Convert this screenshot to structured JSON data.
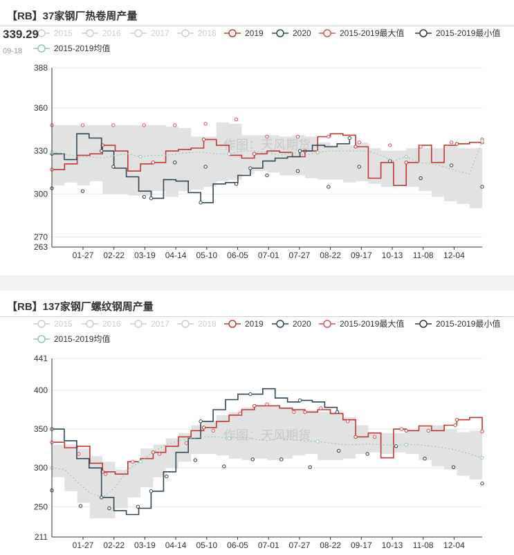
{
  "charts": [
    {
      "title": "【RB】37家钢厂热卷周产量",
      "tooltip": {
        "value": "339.29",
        "date": "09-18"
      },
      "watermark": "作图：天风期货",
      "chart_data": {
        "type": "line",
        "y_ticks": [
          263,
          270,
          300,
          330,
          360,
          388
        ],
        "ylim": [
          263,
          388
        ],
        "x_ticks": [
          "01-27",
          "02-22",
          "03-19",
          "04-14",
          "05-10",
          "06-05",
          "07-01",
          "07-27",
          "08-22",
          "09-17",
          "10-13",
          "11-08",
          "12-04"
        ],
        "legend": [
          {
            "name": "2015",
            "color": "#cccccc",
            "active": false
          },
          {
            "name": "2016",
            "color": "#cccccc",
            "active": false
          },
          {
            "name": "2017",
            "color": "#cccccc",
            "active": false
          },
          {
            "name": "2018",
            "color": "#cccccc",
            "active": false
          },
          {
            "name": "2019",
            "color": "#c23531",
            "active": true
          },
          {
            "name": "2020",
            "color": "#2f4554",
            "active": true
          },
          {
            "name": "2015-2019最大值",
            "color": "#d94e5d",
            "active": true
          },
          {
            "name": "2015-2019最小值",
            "color": "#333333",
            "active": true
          },
          {
            "name": "2015-2019均值",
            "color": "#91c7ae",
            "active": true
          }
        ],
        "band_max": [
          348,
          348,
          348,
          348,
          348,
          348,
          348,
          348,
          348,
          347,
          346,
          340,
          340,
          350,
          349,
          341,
          341,
          341,
          340,
          341,
          340,
          336,
          334,
          334,
          336,
          332,
          330,
          330,
          332,
          332,
          332,
          333,
          332,
          332,
          338
        ],
        "band_min": [
          305,
          306,
          308,
          306,
          309,
          300,
          300,
          299,
          299,
          302,
          298,
          302,
          303,
          305,
          309,
          310,
          314,
          316,
          315,
          313,
          313,
          311,
          310,
          310,
          308,
          309,
          307,
          305,
          306,
          305,
          302,
          298,
          295,
          293,
          290
        ],
        "series": [
          {
            "name": "2019",
            "color": "#c23531",
            "values": [
              317,
              321,
              327,
              328,
              334,
              330,
              316,
              321,
              322,
              330,
              331,
              332,
              338,
              334,
              327,
              325,
              328,
              330,
              329,
              326,
              330,
              340,
              342,
              341,
              333,
              311,
              322,
              306,
              322,
              334,
              322,
              334,
              335,
              336,
              336
            ]
          },
          {
            "name": "2020",
            "color": "#2f4554",
            "values": [
              328,
              324,
              342,
              339,
              330,
              318,
              312,
              302,
              297,
              310,
              309,
              301,
              294,
              307,
              308,
              313,
              318,
              323,
              325,
              326,
              330,
              334,
              333,
              335,
              339
            ]
          },
          {
            "name": "2015-2019最大值",
            "color": "#d94e5d",
            "values": [
              348,
              348,
              348,
              348,
              348,
              349,
              352,
              340,
              340,
              340,
              336,
              334,
              333,
              336,
              338
            ]
          },
          {
            "name": "2015-2019最小值",
            "color": "#333333",
            "values": [
              304,
              302,
              319,
              298,
              322,
              319,
              307,
              313,
              316,
              305,
              319,
              323,
              311,
              320,
              305
            ]
          },
          {
            "name": "2015-2019均值",
            "color": "#91c7ae",
            "values": [
              329,
              328,
              326,
              326,
              325,
              327,
              328,
              326,
              327,
              327,
              328,
              329,
              329,
              328,
              328,
              330,
              330,
              329,
              327,
              329,
              327,
              329,
              330,
              330,
              330,
              330,
              327,
              323,
              326,
              322,
              321,
              319,
              316,
              314,
              337
            ]
          }
        ]
      }
    },
    {
      "title": "【RB】137家钢厂螺纹钢周产量",
      "watermark": "作图：天风期货",
      "chart_data": {
        "type": "line",
        "y_ticks": [
          211,
          250,
          300,
          350,
          400,
          441
        ],
        "ylim": [
          211,
          441
        ],
        "x_ticks": [
          "01-27",
          "02-22",
          "03-19",
          "04-14",
          "05-10",
          "06-05",
          "07-01",
          "07-27",
          "08-22",
          "09-17",
          "10-13",
          "11-08",
          "12-04"
        ],
        "legend": [
          {
            "name": "2015",
            "color": "#cccccc",
            "active": false
          },
          {
            "name": "2016",
            "color": "#cccccc",
            "active": false
          },
          {
            "name": "2017",
            "color": "#cccccc",
            "active": false
          },
          {
            "name": "2018",
            "color": "#cccccc",
            "active": false
          },
          {
            "name": "2019",
            "color": "#c23531",
            "active": true
          },
          {
            "name": "2020",
            "color": "#2f4554",
            "active": true
          },
          {
            "name": "2015-2019最大值",
            "color": "#d94e5d",
            "active": true
          },
          {
            "name": "2015-2019最小值",
            "color": "#333333",
            "active": true
          },
          {
            "name": "2015-2019均值",
            "color": "#91c7ae",
            "active": true
          }
        ],
        "band_max": [
          330,
          330,
          325,
          315,
          308,
          298,
          308,
          325,
          330,
          338,
          345,
          355,
          360,
          368,
          372,
          378,
          380,
          380,
          378,
          376,
          374,
          372,
          372,
          365,
          355,
          345,
          345,
          345,
          348,
          352,
          355,
          350,
          346,
          348,
          345
        ],
        "band_min": [
          292,
          288,
          270,
          255,
          235,
          235,
          248,
          262,
          275,
          288,
          300,
          308,
          318,
          318,
          316,
          312,
          310,
          312,
          310,
          312,
          316,
          318,
          310,
          310,
          312,
          318,
          320,
          318,
          320,
          318,
          310,
          302,
          298,
          290,
          285
        ],
        "series": [
          {
            "name": "2019",
            "color": "#c23531",
            "values": [
              333,
              326,
              328,
              306,
              295,
              292,
              308,
              312,
              320,
              328,
              340,
              348,
              352,
              360,
              368,
              375,
              380,
              380,
              377,
              375,
              372,
              375,
              370,
              362,
              340,
              345,
              313,
              350,
              348,
              354,
              348,
              355,
              362,
              365,
              347
            ]
          },
          {
            "name": "2020",
            "color": "#2f4554",
            "values": [
              350,
              335,
              312,
              300,
              262,
              245,
              240,
              248,
              270,
              295,
              320,
              338,
              360,
              375,
              388,
              395,
              395,
              402,
              390,
              385,
              387,
              385,
              378,
              372
            ]
          },
          {
            "name": "2015-2019最大值",
            "color": "#d94e5d",
            "values": [
              333,
              318,
              292,
              308,
              318,
              332,
              348,
              370,
              382,
              372,
              377,
              360,
              340,
              350,
              348,
              355,
              347
            ]
          },
          {
            "name": "2015-2019最小值",
            "color": "#333333",
            "values": [
              271,
              251,
              248,
              250,
              289,
              310,
              302,
              311,
              311,
              301,
              322,
              318,
              328,
              312,
              301,
              280
            ]
          },
          {
            "name": "2015-2019均值",
            "color": "#91c7ae",
            "values": [
              300,
              298,
              282,
              268,
              262,
              275,
              298,
              308,
              320,
              330,
              335,
              338,
              340,
              340,
              338,
              340,
              337,
              335,
              338,
              336,
              335,
              334,
              332,
              330,
              330,
              331,
              330,
              329,
              330,
              330,
              328,
              326,
              323,
              318,
              313
            ]
          }
        ]
      }
    }
  ]
}
